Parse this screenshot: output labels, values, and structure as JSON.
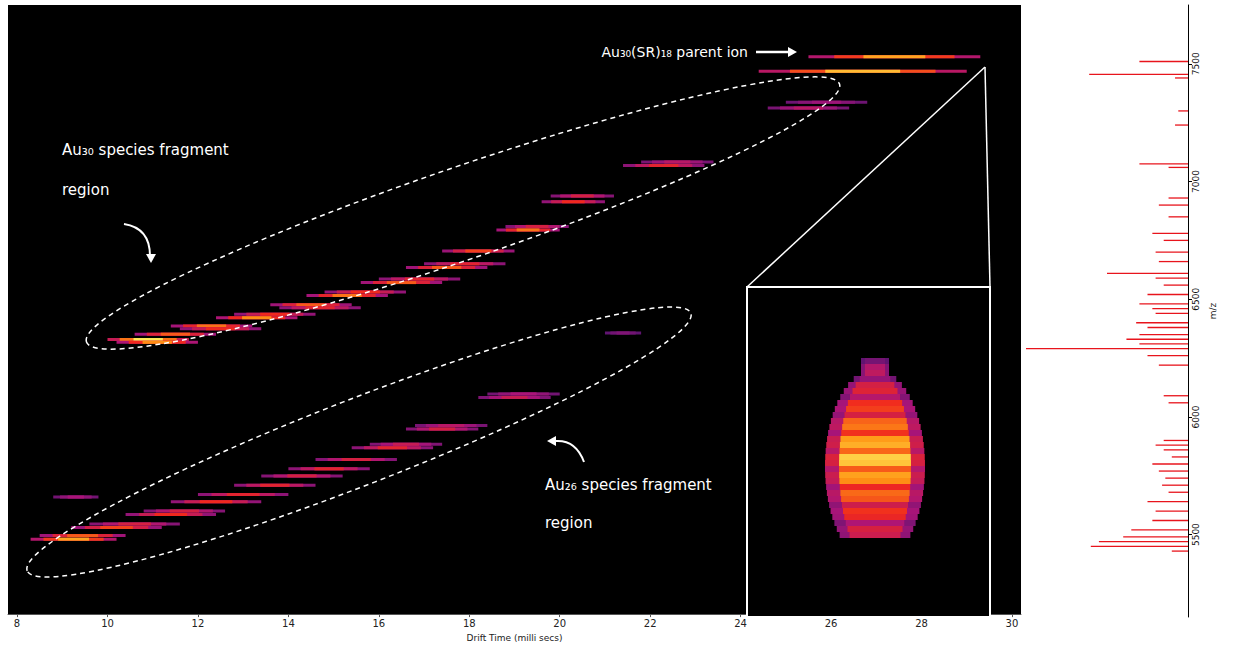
{
  "chart_data": [
    {
      "type": "heatmap",
      "x_label": "Drift Time (milli secs)",
      "xlim": [
        7.8,
        30.2
      ],
      "xticks": [
        8,
        10,
        12,
        14,
        16,
        18,
        20,
        22,
        24,
        26,
        28,
        30
      ],
      "ylim": [
        5150,
        7750
      ],
      "tick_labels": "x",
      "grid": false,
      "annotations": [
        "Au₃₀(SR)₁₈ parent ion",
        "Au₃₀ species fragment region",
        "Au₂₆ species fragment region"
      ],
      "features": {
        "mz": [
          7529,
          7467,
          6322,
          6310,
          6345,
          6380,
          6368,
          6415,
          6430,
          6470,
          6458,
          6510,
          6525,
          6565,
          6580,
          6630,
          6645,
          6700,
          6790,
          6805,
          6910,
          6935,
          7065,
          7080,
          7310,
          7335,
          5470,
          5485,
          5520,
          5535,
          5575,
          5590,
          5630,
          5650,
          5660,
          5700,
          5740,
          5770,
          5810,
          5860,
          5875,
          5940,
          5955,
          6075,
          6090,
          6350
        ],
        "drift_start": [
          25.5,
          24.4,
          10.0,
          10.2,
          10.6,
          11.4,
          11.6,
          12.4,
          12.8,
          13.6,
          13.8,
          14.4,
          14.8,
          15.6,
          16.0,
          16.6,
          17.0,
          17.4,
          18.6,
          18.8,
          19.6,
          19.8,
          21.4,
          21.8,
          24.6,
          25.0,
          8.3,
          8.5,
          9.2,
          9.6,
          10.4,
          10.8,
          11.4,
          8.8,
          12.0,
          12.8,
          13.4,
          14.0,
          14.6,
          15.4,
          15.8,
          16.6,
          16.8,
          18.2,
          18.4,
          21.0
        ],
        "drift_end": [
          29.3,
          29.0,
          11.8,
          12.0,
          12.4,
          13.2,
          13.4,
          14.2,
          14.6,
          15.4,
          15.6,
          16.2,
          16.6,
          17.4,
          17.8,
          18.4,
          18.8,
          19.0,
          20.0,
          20.2,
          21.0,
          21.2,
          23.2,
          23.4,
          26.4,
          26.8,
          10.2,
          10.4,
          11.2,
          11.6,
          12.4,
          12.6,
          13.4,
          9.8,
          14.0,
          14.6,
          15.2,
          15.8,
          16.4,
          17.2,
          17.4,
          18.2,
          18.4,
          19.8,
          20.0,
          21.8
        ],
        "intensity": [
          0.85,
          0.9,
          1.0,
          0.8,
          0.7,
          0.75,
          0.6,
          0.8,
          0.6,
          0.7,
          0.55,
          0.75,
          0.6,
          0.7,
          0.55,
          0.7,
          0.55,
          0.65,
          0.75,
          0.5,
          0.6,
          0.5,
          0.55,
          0.4,
          0.4,
          0.3,
          0.85,
          0.7,
          0.65,
          0.5,
          0.6,
          0.5,
          0.6,
          0.35,
          0.55,
          0.55,
          0.5,
          0.55,
          0.5,
          0.55,
          0.45,
          0.5,
          0.4,
          0.45,
          0.35,
          0.2
        ]
      }
    },
    {
      "type": "bar",
      "orientation": "horizontal",
      "y_label": "m/z",
      "color": "#e8141c",
      "xlim": [
        0,
        100
      ],
      "ylim": [
        5150,
        7750
      ],
      "yticks": [
        5500,
        6000,
        6500,
        7000,
        7500
      ],
      "tick_labels": "y",
      "grid": false,
      "mz": [
        5430,
        5450,
        5470,
        5490,
        5520,
        5560,
        5600,
        5640,
        5680,
        5710,
        5740,
        5770,
        5800,
        5830,
        5860,
        5880,
        5900,
        6060,
        6090,
        6220,
        6260,
        6290,
        6310,
        6330,
        6350,
        6380,
        6400,
        6440,
        6460,
        6480,
        6520,
        6560,
        6590,
        6610,
        6660,
        6700,
        6750,
        6780,
        6850,
        6900,
        6930,
        7060,
        7075,
        7240,
        7300,
        7440,
        7455,
        7510
      ],
      "values": [
        10,
        60,
        55,
        40,
        35,
        22,
        20,
        25,
        12,
        16,
        14,
        18,
        22,
        10,
        15,
        20,
        15,
        12,
        15,
        18,
        25,
        100,
        30,
        38,
        30,
        25,
        32,
        20,
        22,
        30,
        25,
        15,
        20,
        50,
        18,
        20,
        15,
        22,
        12,
        18,
        12,
        12,
        30,
        8,
        6,
        8,
        61,
        30
      ]
    }
  ]
}
